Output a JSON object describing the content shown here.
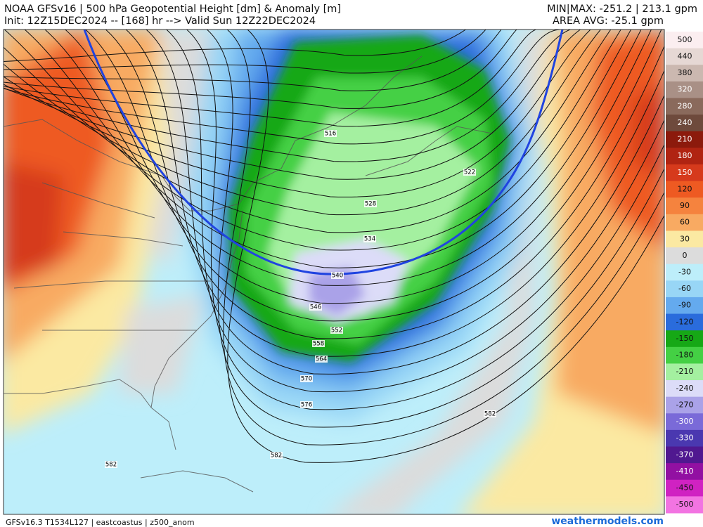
{
  "header": {
    "title": "NOAA GFSv16 | 500 hPa Geopotential Height [dm] & Anomaly [m]",
    "init": "Init: 12Z15DEC2024 -- [168] hr --> Valid Sun 12Z22DEC2024",
    "minmax": "MIN|MAX: -251.2 | 213.1 gpm",
    "area_avg": "AREA AVG: -25.1 gpm"
  },
  "colorbar": {
    "levels": [
      500,
      440,
      380,
      320,
      280,
      240,
      210,
      180,
      150,
      120,
      90,
      60,
      30,
      0,
      -30,
      -60,
      -90,
      -120,
      -150,
      -180,
      -210,
      -240,
      -270,
      -300,
      -330,
      -370,
      -410,
      -450,
      -500
    ],
    "colors": [
      "#fbeef0",
      "#e6d8d4",
      "#cbb8b0",
      "#a99086",
      "#8a6a5c",
      "#6e4a3c",
      "#8c1a0c",
      "#b02412",
      "#d63a1c",
      "#ee5a22",
      "#f5833e",
      "#f8aa62",
      "#fbe9a2",
      "#dcdcdc",
      "#bdeefa",
      "#98d6f6",
      "#64aaee",
      "#2a6cdc",
      "#16a816",
      "#44d044",
      "#a4f0a0",
      "#dcdcf8",
      "#aaa2e8",
      "#7a6ad8",
      "#4a38b0",
      "#501890",
      "#9210a2",
      "#d022c2",
      "#f274e2"
    ]
  },
  "contours": {
    "labels": [
      "516",
      "522",
      "528",
      "534",
      "540",
      "546",
      "552",
      "558",
      "564",
      "570",
      "576",
      "582",
      "582",
      "582"
    ]
  },
  "footer": {
    "left": "GFSv16.3 T1534L127 | eastcoastus | z500_anom",
    "right": "weathermodels.com"
  }
}
